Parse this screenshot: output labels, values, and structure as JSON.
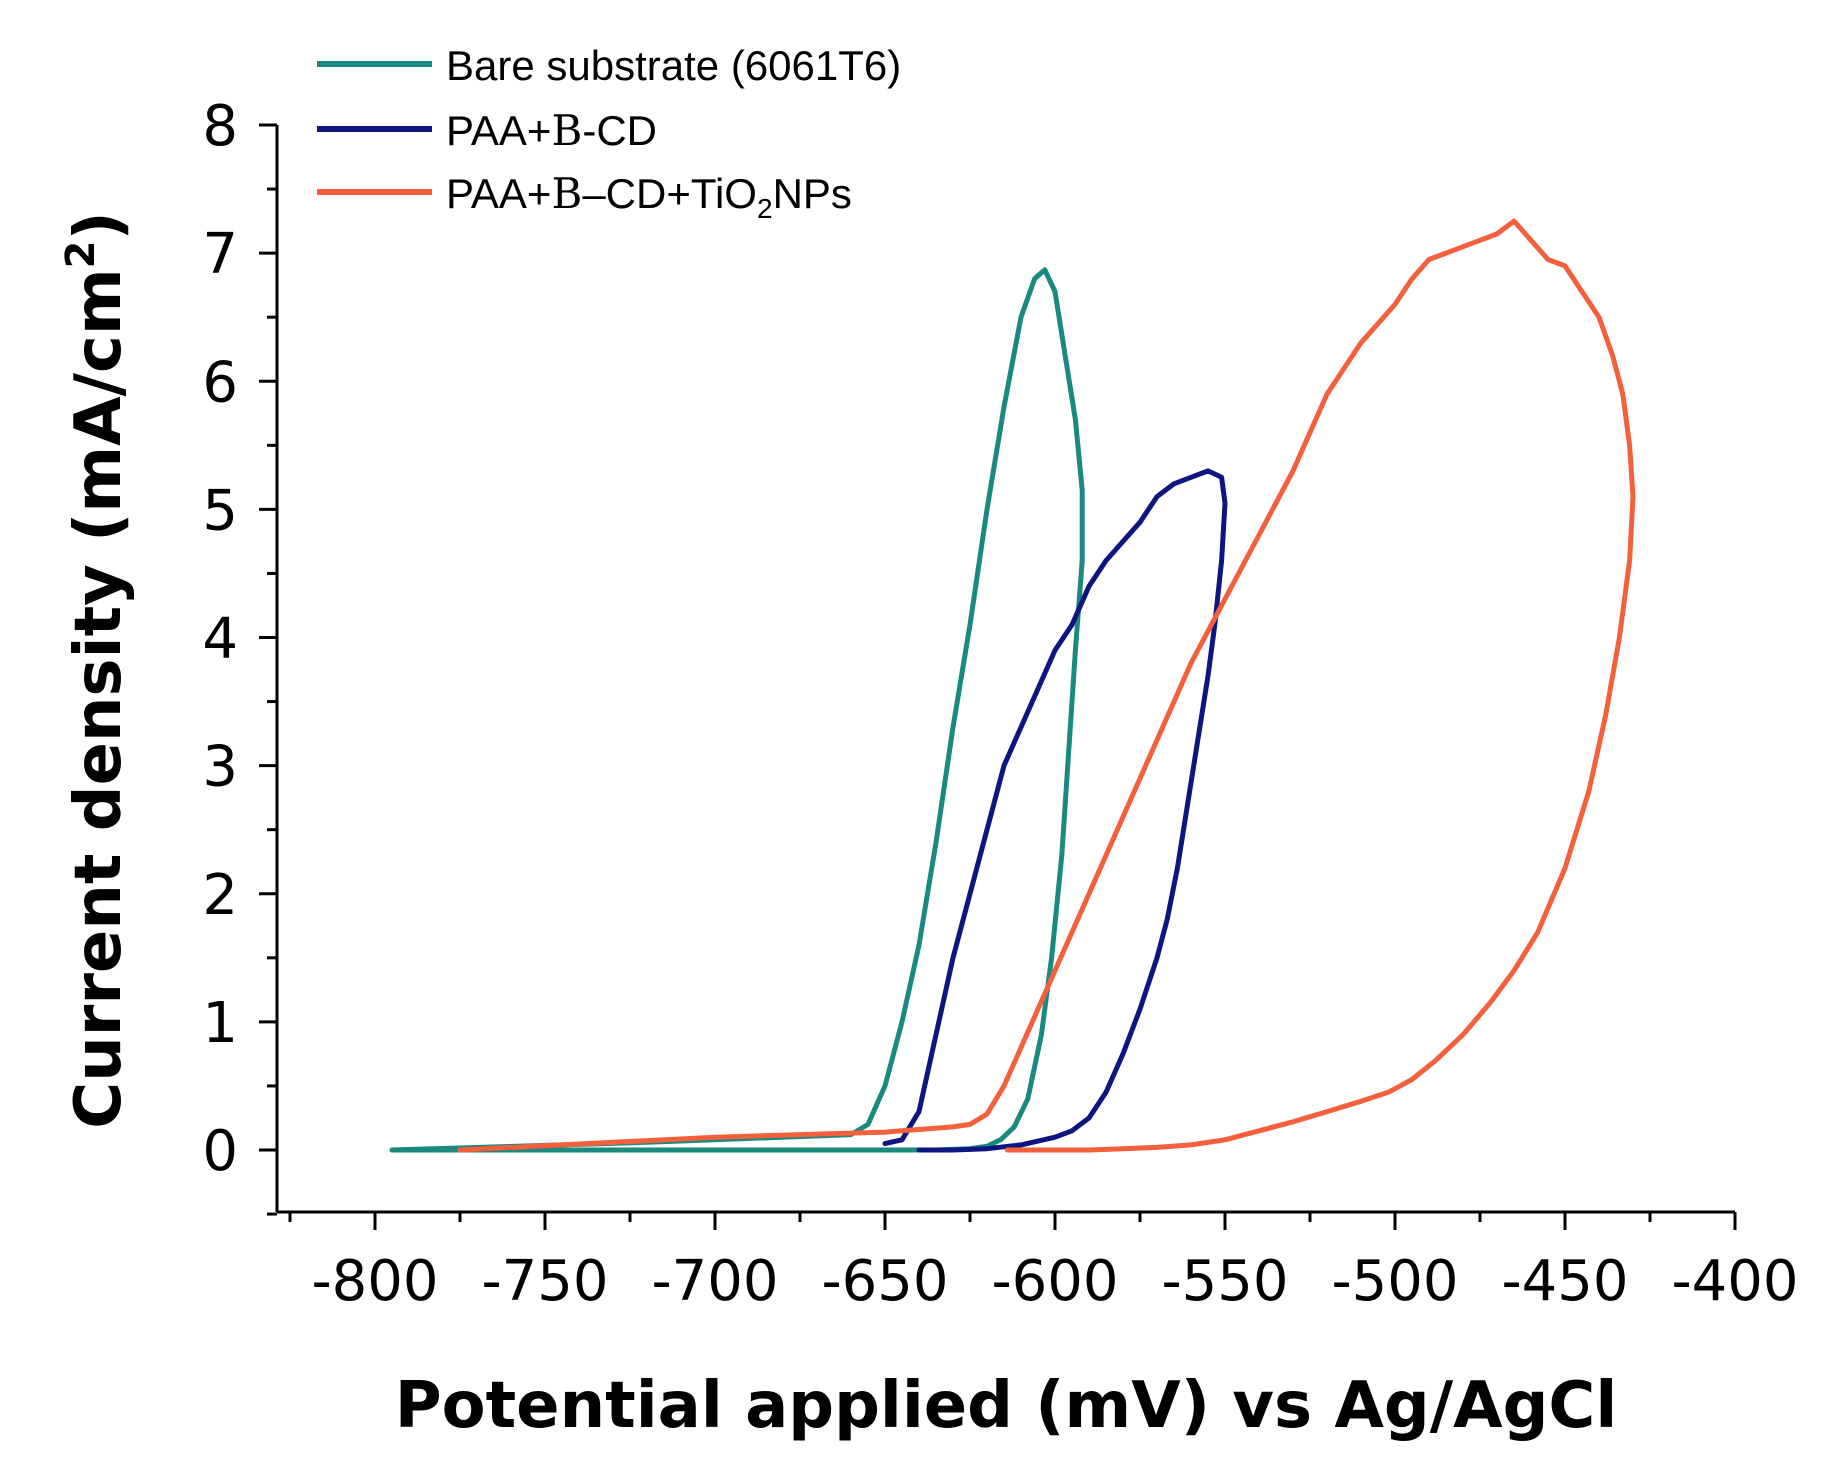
{
  "chart_data": {
    "type": "line",
    "title": "",
    "xlabel": "Potential applied (mV) vs Ag/AgCl",
    "ylabel": "Current density (mA/cm",
    "ylabel_sup": "2",
    "ylabel_end": ")",
    "xlim": [
      -830,
      -400
    ],
    "ylim": [
      -0.5,
      8
    ],
    "xticks": [
      -800,
      -750,
      -700,
      -650,
      -600,
      -550,
      -500,
      -450,
      -400
    ],
    "xtick_labels": [
      "-800",
      "-750",
      "-700",
      "-650",
      "-600",
      "-550",
      "-500",
      "-450",
      "-400"
    ],
    "yticks": [
      0,
      1,
      2,
      3,
      4,
      5,
      6,
      7,
      8
    ],
    "ytick_labels": [
      "0",
      "1",
      "2",
      "3",
      "4",
      "5",
      "6",
      "7",
      "8"
    ],
    "legend_position": "top-left",
    "series": [
      {
        "name": "Bare substrate (6061T6)",
        "color": "#1a8a7e",
        "x": [
          -795,
          -720,
          -660,
          -655,
          -650,
          -645,
          -640,
          -635,
          -630,
          -625,
          -620,
          -615,
          -610,
          -606,
          -603,
          -600,
          -597,
          -594,
          -592,
          -592,
          -594,
          -596,
          -598,
          -601,
          -604,
          -608,
          -612,
          -616,
          -620,
          -625,
          -635,
          -700,
          -795
        ],
        "y": [
          0,
          0.06,
          0.12,
          0.2,
          0.5,
          1.0,
          1.6,
          2.4,
          3.3,
          4.1,
          5.0,
          5.8,
          6.5,
          6.8,
          6.87,
          6.7,
          6.2,
          5.7,
          5.15,
          4.6,
          3.9,
          3.1,
          2.3,
          1.5,
          0.9,
          0.4,
          0.18,
          0.08,
          0.03,
          0.01,
          0.0,
          0.0,
          0.0
        ]
      },
      {
        "name": "PAA+B-CD",
        "display_name_suffix": "-CD",
        "color": "#0d1580",
        "x": [
          -650,
          -645,
          -640,
          -635,
          -630,
          -625,
          -620,
          -615,
          -610,
          -605,
          -600,
          -595,
          -590,
          -585,
          -580,
          -575,
          -570,
          -565,
          -560,
          -555,
          -551,
          -550,
          -551,
          -553,
          -555,
          -558,
          -561,
          -564,
          -567,
          -570,
          -575,
          -580,
          -585,
          -590,
          -595,
          -600,
          -610,
          -620,
          -630,
          -640
        ],
        "y": [
          0.05,
          0.08,
          0.3,
          0.9,
          1.5,
          2.0,
          2.5,
          3.0,
          3.3,
          3.6,
          3.9,
          4.1,
          4.4,
          4.6,
          4.75,
          4.9,
          5.1,
          5.2,
          5.25,
          5.3,
          5.25,
          5.05,
          4.6,
          4.1,
          3.7,
          3.2,
          2.7,
          2.2,
          1.8,
          1.5,
          1.1,
          0.75,
          0.45,
          0.25,
          0.15,
          0.1,
          0.04,
          0.01,
          0.0,
          0.0
        ]
      },
      {
        "name": "PAA+B-CD+TiO2NPs",
        "display_name_mid": "–CD+TiO",
        "display_name_sub": "2",
        "display_name_end": "NPs",
        "color": "#f5603c",
        "x": [
          -775,
          -700,
          -650,
          -630,
          -625,
          -620,
          -615,
          -610,
          -600,
          -590,
          -580,
          -570,
          -560,
          -550,
          -540,
          -530,
          -520,
          -510,
          -500,
          -495,
          -490,
          -485,
          -480,
          -475,
          -470,
          -465,
          -460,
          -455,
          -450,
          -445,
          -440,
          -436,
          -433,
          -431,
          -430,
          -431,
          -434,
          -438,
          -443,
          -450,
          -458,
          -465,
          -472,
          -480,
          -488,
          -495,
          -502,
          -510,
          -520,
          -530,
          -540,
          -550,
          -560,
          -570,
          -580,
          -590,
          -600,
          -614
        ],
        "y": [
          0,
          0.1,
          0.14,
          0.18,
          0.2,
          0.28,
          0.5,
          0.8,
          1.4,
          2.0,
          2.6,
          3.2,
          3.8,
          4.3,
          4.8,
          5.3,
          5.9,
          6.3,
          6.6,
          6.8,
          6.95,
          7.0,
          7.05,
          7.1,
          7.15,
          7.25,
          7.1,
          6.95,
          6.9,
          6.7,
          6.5,
          6.2,
          5.9,
          5.5,
          5.1,
          4.6,
          4.0,
          3.4,
          2.8,
          2.2,
          1.7,
          1.4,
          1.15,
          0.9,
          0.7,
          0.55,
          0.45,
          0.38,
          0.3,
          0.22,
          0.15,
          0.08,
          0.04,
          0.02,
          0.01,
          0.0,
          0.0,
          0.0
        ]
      }
    ]
  },
  "legend": {
    "items": [
      {
        "prefix": "Bare substrate (6061T6)"
      },
      {
        "prefix": "PAA+",
        "beta": "B",
        "suffix": "-CD"
      },
      {
        "prefix": "PAA+",
        "beta": "B",
        "suffix": "–CD+TiO",
        "sub": "2",
        "end": "NPs"
      }
    ]
  }
}
